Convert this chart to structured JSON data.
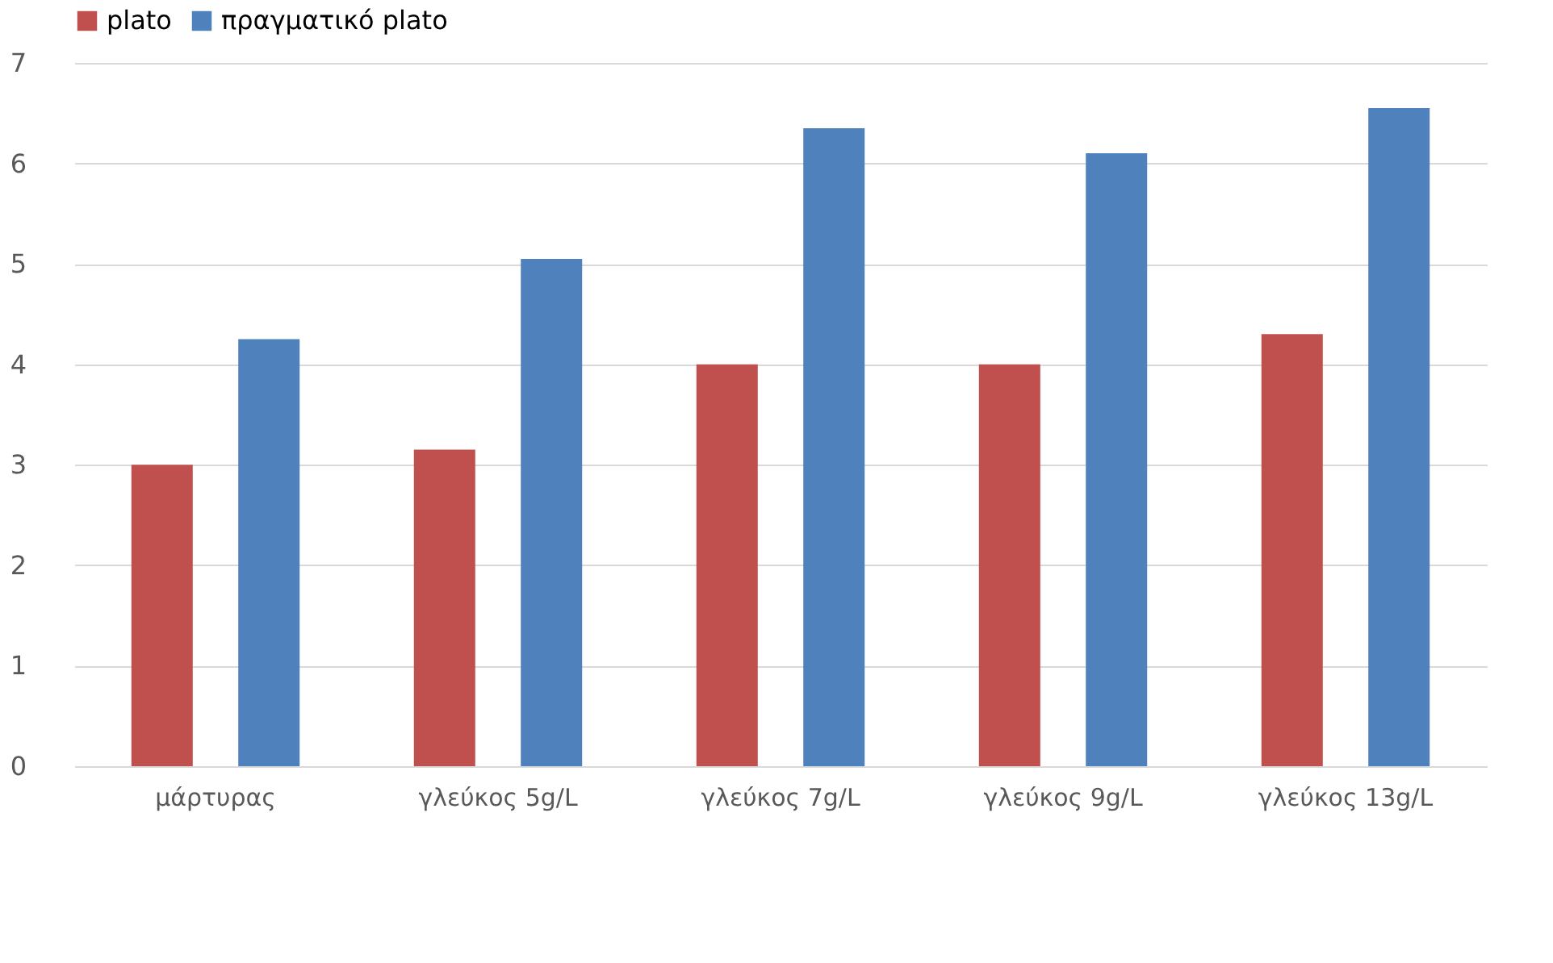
{
  "chart_data": {
    "type": "bar",
    "categories": [
      "μάρτυρας",
      "γλεύκος 5g/L",
      "γλεύκος 7g/L",
      "γλεύκος 9g/L",
      "γλεύκος 13g/L"
    ],
    "series": [
      {
        "name": "plato",
        "color": "#c0504d",
        "values": [
          3.0,
          3.15,
          4.0,
          4.0,
          4.3
        ]
      },
      {
        "name": "πραγματικό plato",
        "color": "#4f81bd",
        "values": [
          4.25,
          5.05,
          6.35,
          6.1,
          6.55
        ]
      }
    ],
    "ylim": [
      0,
      7
    ],
    "yticks": [
      0,
      1,
      2,
      3,
      4,
      5,
      6,
      7
    ],
    "grid": "y",
    "legend": "top"
  }
}
